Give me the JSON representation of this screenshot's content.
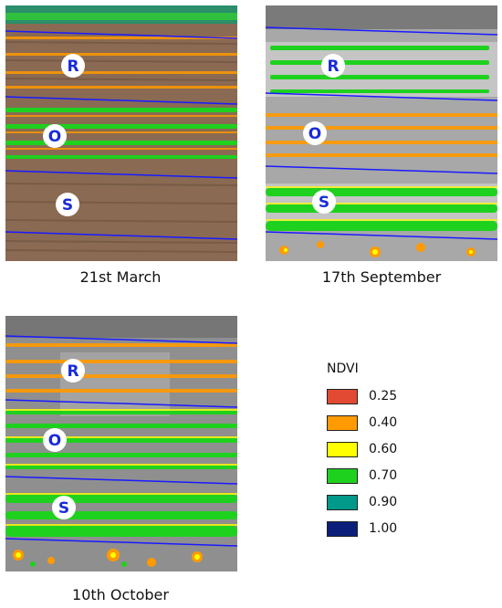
{
  "panels": [
    {
      "caption": "21st March",
      "plot_labels": [
        "R",
        "O",
        "S"
      ]
    },
    {
      "caption": "17th September",
      "plot_labels": [
        "R",
        "O",
        "S"
      ]
    },
    {
      "caption": "10th October",
      "plot_labels": [
        "R",
        "O",
        "S"
      ]
    }
  ],
  "legend": {
    "title": "NDVI",
    "items": [
      {
        "label": "0.25",
        "color": "#e24a33"
      },
      {
        "label": "0.40",
        "color": "#ff9a00"
      },
      {
        "label": "0.60",
        "color": "#ffff00"
      },
      {
        "label": "0.70",
        "color": "#1fd11f"
      },
      {
        "label": "0.90",
        "color": "#00998a"
      },
      {
        "label": "1.00",
        "color": "#0b1f7a"
      }
    ]
  },
  "colors": {
    "boundary_line": "#1a1aff",
    "plot_label_text": "#1a2bd6",
    "soil_march": "#8a6a52",
    "background_sept": "#a8a8a8",
    "background_oct": "#8f8f8f"
  }
}
